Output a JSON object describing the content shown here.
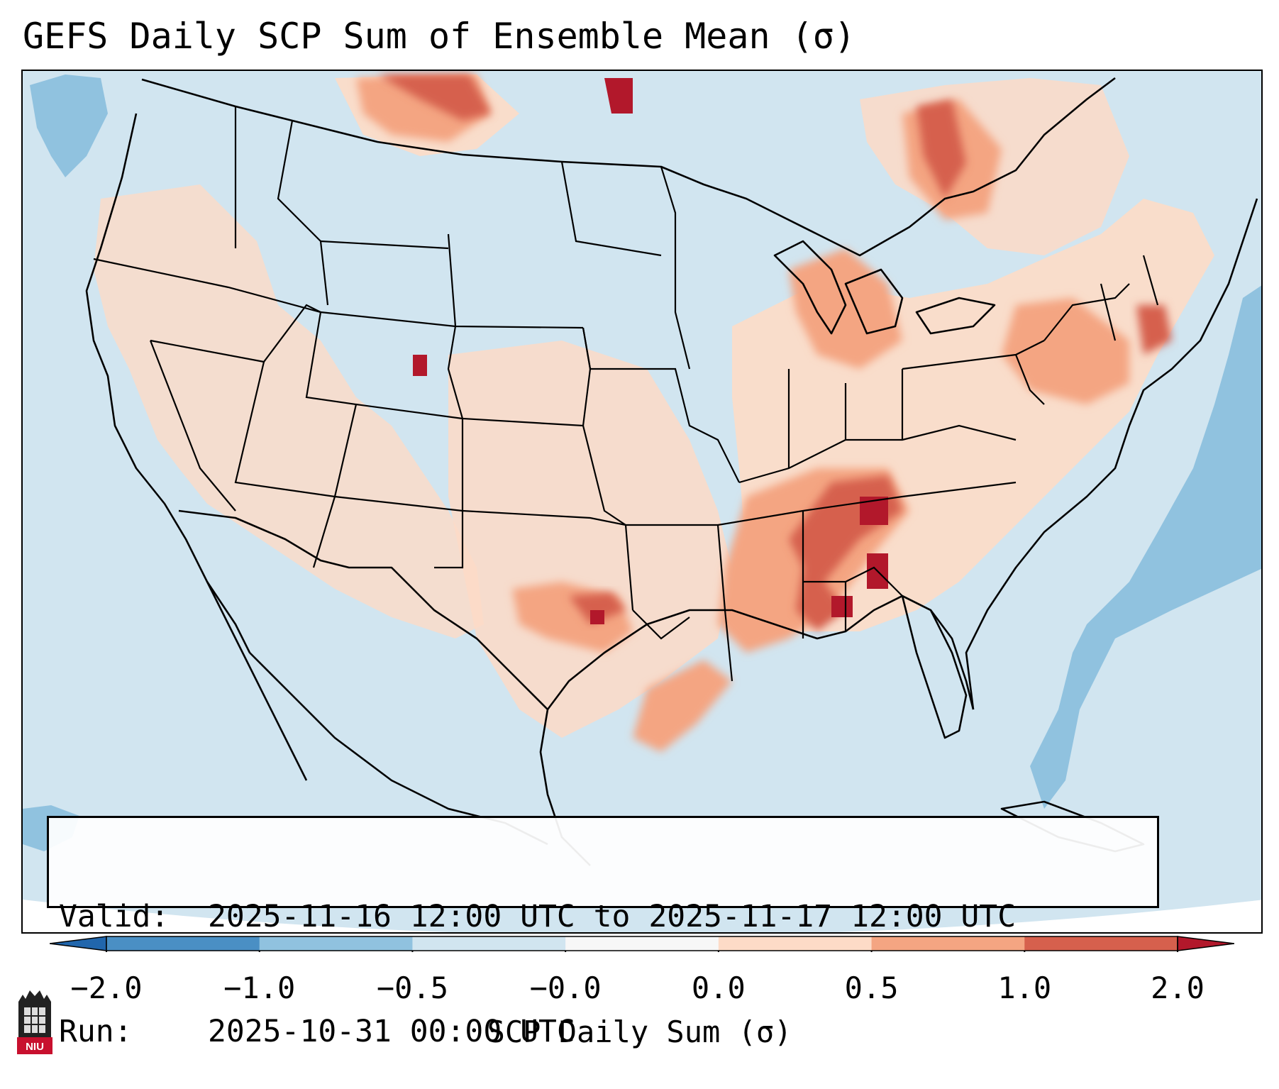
{
  "title": "GEFS Daily SCP Sum of Ensemble Mean (σ)",
  "info": {
    "valid_label": "Valid:",
    "valid_value": "2025-11-16 12:00 UTC to 2025-11-17 12:00 UTC",
    "run_label": "Run:",
    "run_value": "2025-10-31 00:00 UTC"
  },
  "colorbar": {
    "label": "SCP Daily Sum (σ)",
    "extend": "both",
    "bins": [
      {
        "from": -2.0,
        "to": -1.0,
        "color": "#4a8fc4"
      },
      {
        "from": -1.0,
        "to": -0.5,
        "color": "#90c2df"
      },
      {
        "from": -0.5,
        "to": -0.0,
        "color": "#d1e5f0"
      },
      {
        "from": -0.0,
        "to": 0.0,
        "color": "#f7f7f7"
      },
      {
        "from": 0.0,
        "to": 0.5,
        "color": "#fddbc7"
      },
      {
        "from": 0.5,
        "to": 1.0,
        "color": "#f4a582"
      },
      {
        "from": 1.0,
        "to": 2.0,
        "color": "#d6604d"
      }
    ],
    "under_color": "#2166ac",
    "over_color": "#b2182b",
    "tick_labels": [
      "−2.0",
      "−1.0",
      "−0.5",
      "−0.0",
      "0.0",
      "0.5",
      "1.0",
      "2.0"
    ]
  },
  "map": {
    "projection": "Lambert Conformal (CONUS)",
    "background_color": "#d1e5f0",
    "regions": [
      {
        "name": "Tennessee Valley / Deep South",
        "category": "1.0 to 2.0"
      },
      {
        "name": "Southern Plains (Texas/Oklahoma)",
        "category": "0.5 to 1.0"
      },
      {
        "name": "Northeast / New England",
        "category": "0.5 to 1.0"
      },
      {
        "name": "Ontario / Quebec",
        "category": "1.0 to 2.0"
      },
      {
        "name": "Western Atlantic",
        "category": "-1.0 to -0.5"
      },
      {
        "name": "Northeast Pacific",
        "category": "-1.0 to -0.5"
      }
    ]
  },
  "logo_text": "NIU"
}
